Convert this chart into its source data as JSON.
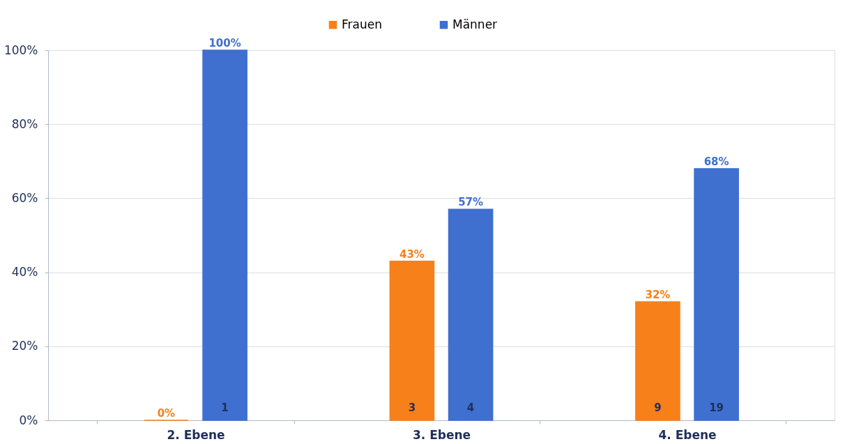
{
  "chart_data": {
    "type": "bar",
    "categories": [
      "2. Ebene",
      "3. Ebene",
      "4. Ebene"
    ],
    "series": [
      {
        "name": "Frauen",
        "color": "#f7801a",
        "values": [
          0,
          43,
          32
        ],
        "value_labels": [
          "0%",
          "43%",
          "32%"
        ]
      },
      {
        "name": "Männer",
        "color": "#3f6fcf",
        "values": [
          100,
          57,
          68
        ],
        "value_labels": [
          "100%",
          "57%",
          "68%"
        ]
      }
    ],
    "ylim": [
      0,
      100
    ],
    "yticks": [
      {
        "value": 0,
        "label": "0%"
      },
      {
        "value": 20,
        "label": "20%"
      },
      {
        "value": 40,
        "label": "40%"
      },
      {
        "value": 60,
        "label": "60%"
      },
      {
        "value": 80,
        "label": "80%"
      },
      {
        "value": 100,
        "label": "100%"
      }
    ],
    "annotations": [
      "1",
      "3",
      "4",
      "9",
      "19"
    ],
    "grid": "y",
    "legend": "top"
  }
}
